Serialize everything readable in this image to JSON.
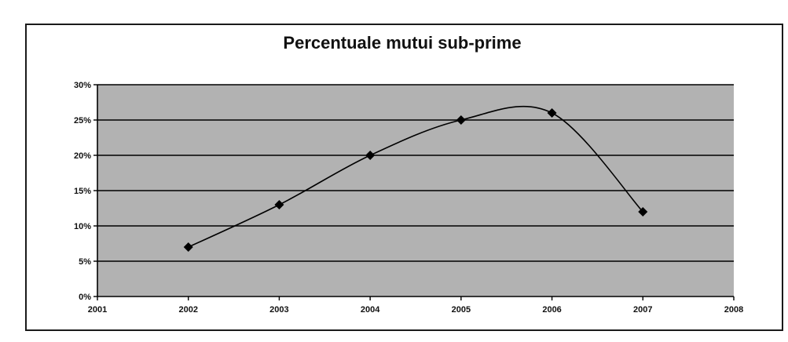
{
  "chart_data": {
    "type": "line",
    "title": "Percentuale mutui sub-prime",
    "xlabel": "",
    "ylabel": "",
    "x": [
      2002,
      2003,
      2004,
      2005,
      2006,
      2007
    ],
    "series": [
      {
        "values": [
          7,
          13,
          20,
          25,
          26,
          12
        ]
      }
    ],
    "xlim": [
      2001,
      2008
    ],
    "ylim": [
      0,
      30
    ],
    "x_ticks": [
      2001,
      2002,
      2003,
      2004,
      2005,
      2006,
      2007,
      2008
    ],
    "y_ticks": [
      0,
      5,
      10,
      15,
      20,
      25,
      30
    ],
    "y_tick_labels": [
      "0%",
      "5%",
      "10%",
      "15%",
      "20%",
      "25%",
      "30%"
    ],
    "grid": "horizontal",
    "smoothed": true,
    "legend": "none",
    "colors": {
      "plot_background": "#b2b2b2",
      "line": "#000000",
      "marker": "#000000",
      "gridline": "#000000"
    },
    "marker": "diamond"
  }
}
